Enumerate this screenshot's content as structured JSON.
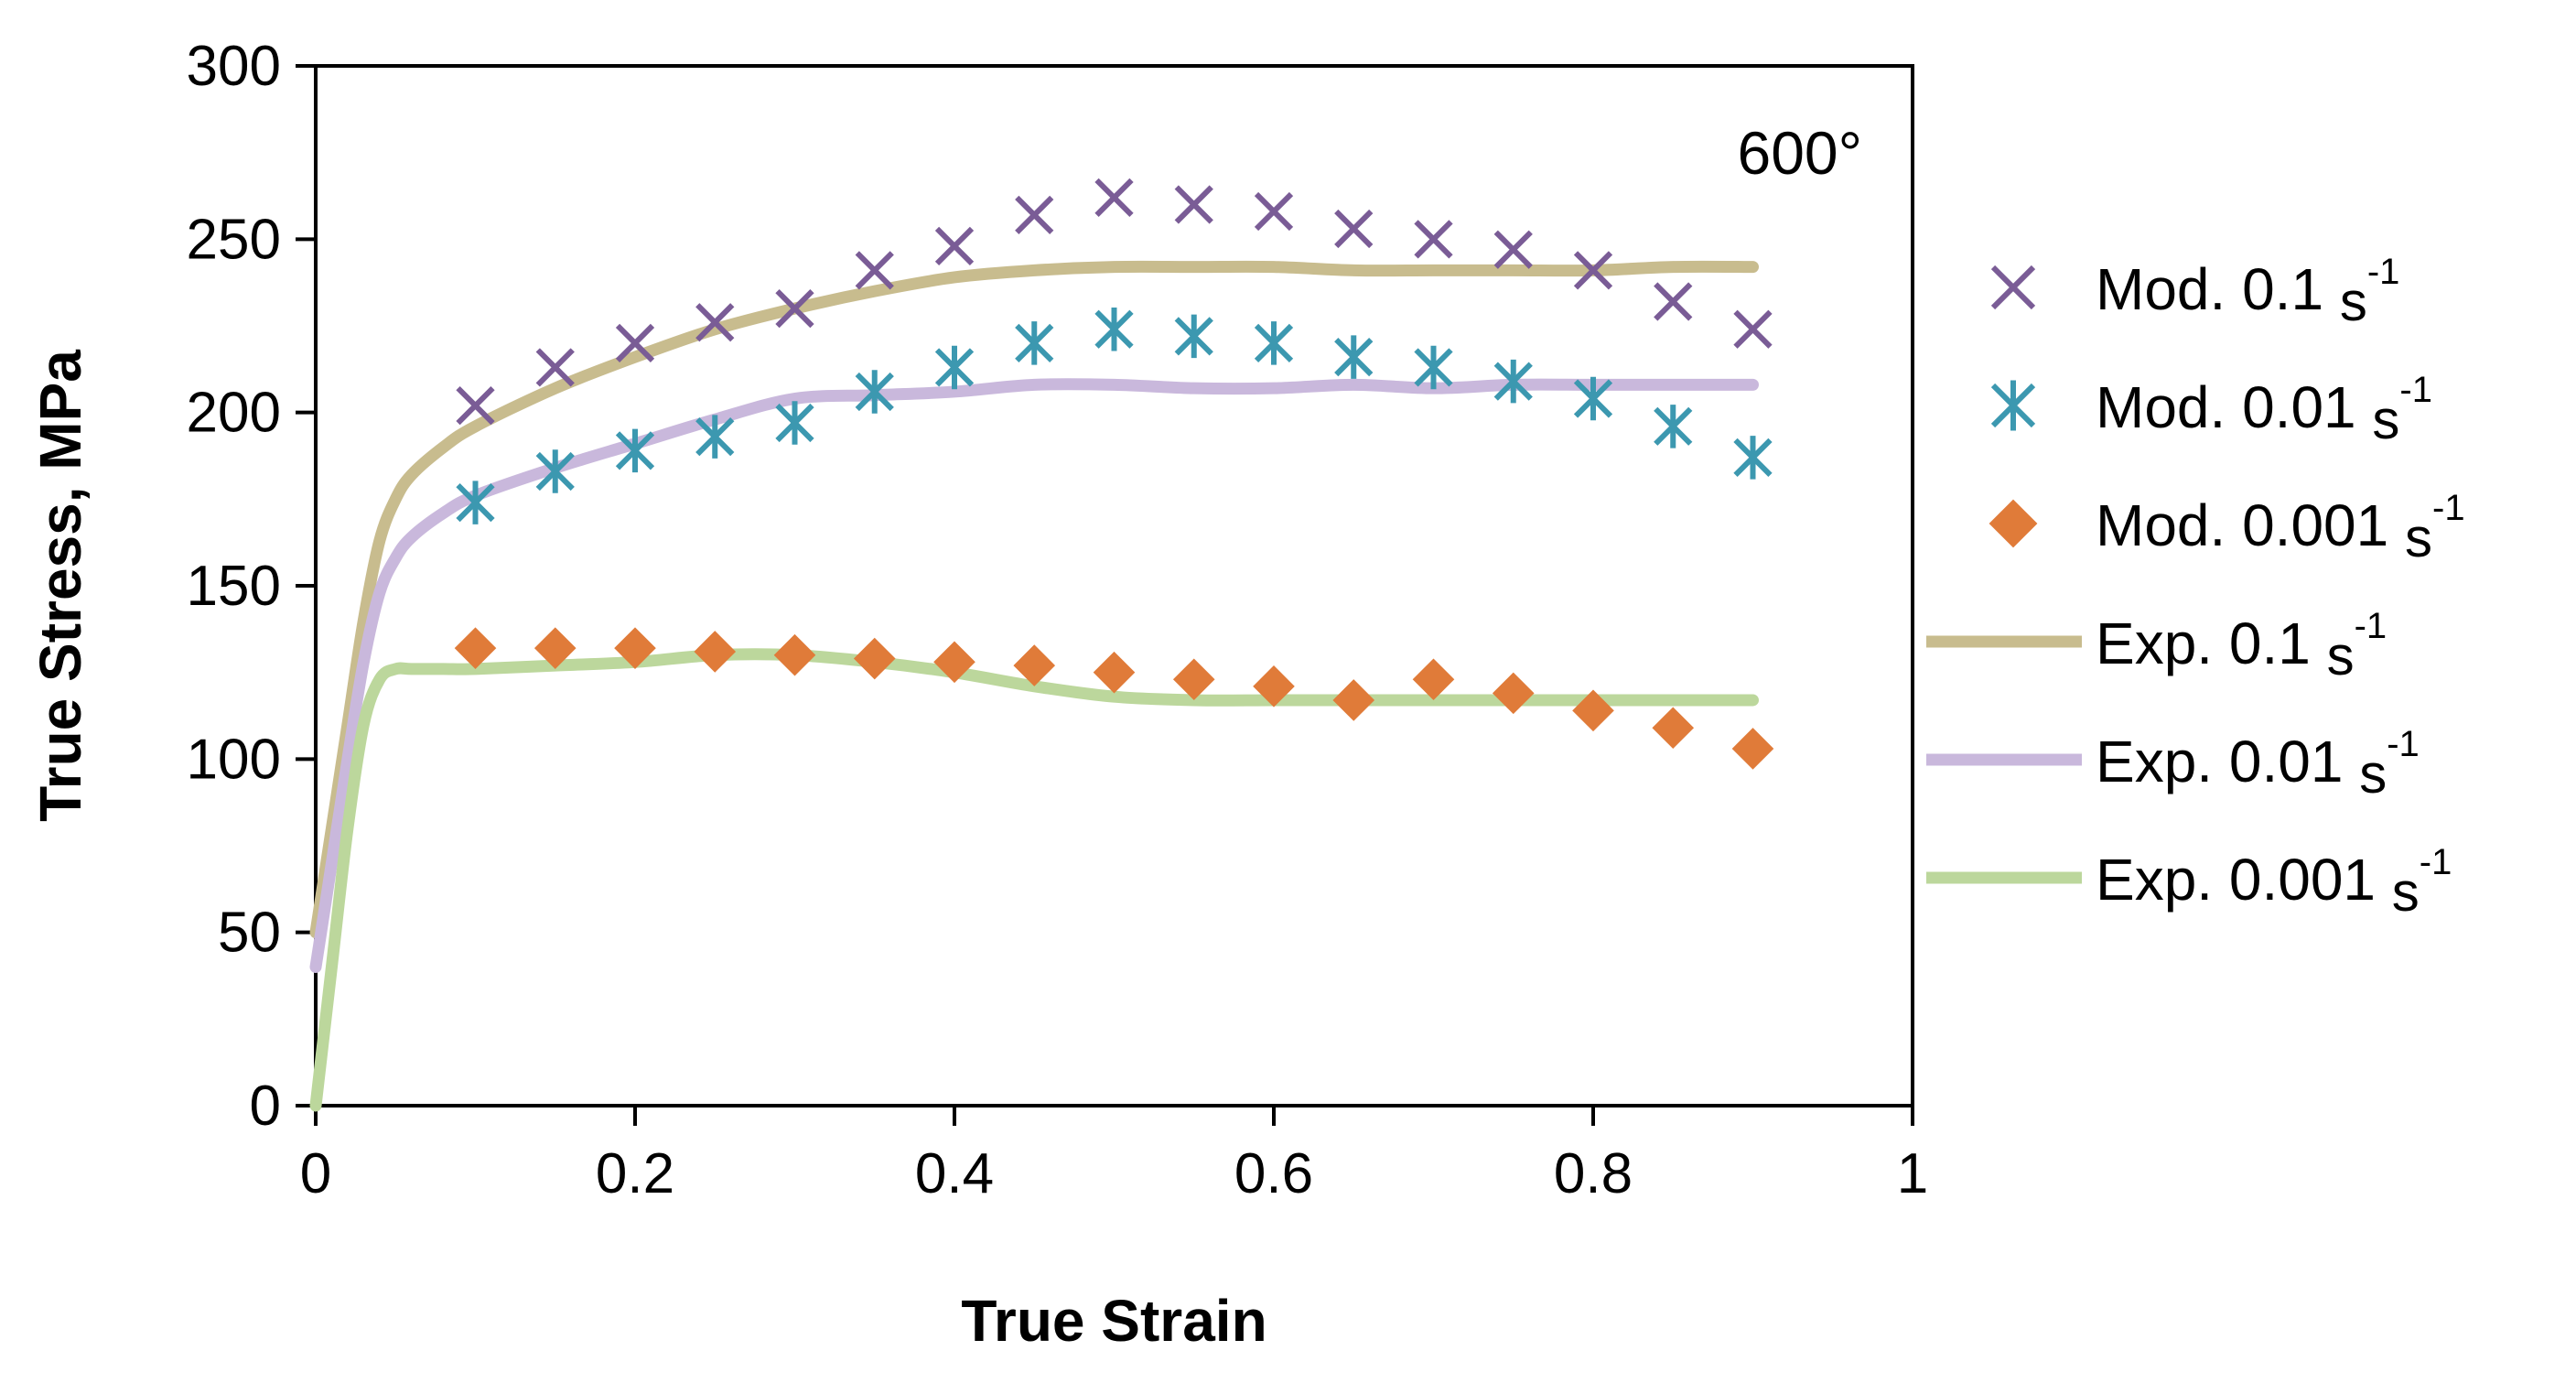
{
  "chart_data": {
    "type": "line",
    "title": "",
    "annotation": "600°",
    "xlabel": "True Strain",
    "ylabel": "True Stress, MPa",
    "xlim": [
      0,
      1
    ],
    "ylim": [
      0,
      300
    ],
    "xticks": [
      0,
      0.2,
      0.4,
      0.6,
      0.8,
      1
    ],
    "xtick_labels": [
      "0",
      "0.2",
      "0.4",
      "0.6",
      "0.8",
      "1"
    ],
    "yticks": [
      0,
      50,
      100,
      150,
      200,
      250,
      300
    ],
    "ytick_labels": [
      "0",
      "50",
      "100",
      "150",
      "200",
      "250",
      "300"
    ],
    "grid": false,
    "legend_position": "right",
    "series": [
      {
        "name": "Mod. 0.1",
        "unit": "s",
        "sup": "-1",
        "kind": "marker",
        "marker": "x",
        "color": "#7a5c96",
        "x": [
          0.1,
          0.15,
          0.2,
          0.25,
          0.3,
          0.35,
          0.4,
          0.45,
          0.5,
          0.55,
          0.6,
          0.65,
          0.7,
          0.75,
          0.8,
          0.85,
          0.9
        ],
        "y": [
          202,
          213,
          220,
          226,
          230,
          241,
          248,
          257,
          262,
          260,
          258,
          253,
          250,
          247,
          241,
          232,
          224
        ]
      },
      {
        "name": "Mod. 0.01",
        "unit": "s",
        "sup": "-1",
        "kind": "marker",
        "marker": "asterisk",
        "color": "#3c98b0",
        "x": [
          0.1,
          0.15,
          0.2,
          0.25,
          0.3,
          0.35,
          0.4,
          0.45,
          0.5,
          0.55,
          0.6,
          0.65,
          0.7,
          0.75,
          0.8,
          0.85,
          0.9
        ],
        "y": [
          174,
          183,
          189,
          193,
          197,
          206,
          213,
          220,
          224,
          222,
          220,
          216,
          213,
          209,
          204,
          196,
          187
        ]
      },
      {
        "name": "Mod. 0.001",
        "unit": "s",
        "sup": "-1",
        "kind": "marker",
        "marker": "diamond",
        "color": "#e07b39",
        "x": [
          0.1,
          0.15,
          0.2,
          0.25,
          0.3,
          0.35,
          0.4,
          0.45,
          0.5,
          0.55,
          0.6,
          0.65,
          0.7,
          0.75,
          0.8,
          0.85,
          0.9
        ],
        "y": [
          132,
          132,
          132,
          131,
          130,
          129,
          128,
          127,
          125,
          123,
          121,
          117,
          123,
          119,
          114,
          109,
          103
        ]
      },
      {
        "name": "Exp. 0.1",
        "unit": "s",
        "sup": "-1",
        "kind": "line",
        "color": "#c8bc8e",
        "x": [
          0,
          0.01,
          0.02,
          0.03,
          0.04,
          0.05,
          0.06,
          0.08,
          0.1,
          0.15,
          0.2,
          0.25,
          0.3,
          0.35,
          0.4,
          0.45,
          0.5,
          0.55,
          0.6,
          0.65,
          0.7,
          0.75,
          0.8,
          0.85,
          0.9
        ],
        "y": [
          50,
          80,
          110,
          140,
          163,
          175,
          182,
          190,
          196,
          207,
          216,
          224,
          230,
          235,
          239,
          241,
          242,
          242,
          242,
          241,
          241,
          241,
          241,
          242,
          242
        ]
      },
      {
        "name": "Exp. 0.01",
        "unit": "s",
        "sup": "-1",
        "kind": "line",
        "color": "#c9b8dc",
        "x": [
          0,
          0.01,
          0.02,
          0.03,
          0.04,
          0.05,
          0.06,
          0.08,
          0.1,
          0.15,
          0.2,
          0.25,
          0.3,
          0.35,
          0.4,
          0.45,
          0.5,
          0.55,
          0.6,
          0.65,
          0.7,
          0.75,
          0.8,
          0.85,
          0.9
        ],
        "y": [
          40,
          70,
          100,
          128,
          148,
          158,
          164,
          171,
          176,
          184,
          191,
          198,
          204,
          205,
          206,
          208,
          208,
          207,
          207,
          208,
          207,
          208,
          208,
          208,
          208
        ]
      },
      {
        "name": "Exp. 0.001",
        "unit": "s",
        "sup": "-1",
        "kind": "line",
        "color": "#bcd79c",
        "x": [
          0,
          0.01,
          0.02,
          0.03,
          0.04,
          0.05,
          0.06,
          0.08,
          0.1,
          0.15,
          0.2,
          0.25,
          0.3,
          0.35,
          0.4,
          0.45,
          0.5,
          0.55,
          0.6,
          0.65,
          0.7,
          0.75,
          0.8,
          0.85,
          0.9
        ],
        "y": [
          0,
          40,
          80,
          110,
          123,
          126,
          126,
          126,
          126,
          127,
          128,
          130,
          130,
          128,
          125,
          121,
          118,
          117,
          117,
          117,
          117,
          117,
          117,
          117,
          117
        ]
      }
    ]
  }
}
